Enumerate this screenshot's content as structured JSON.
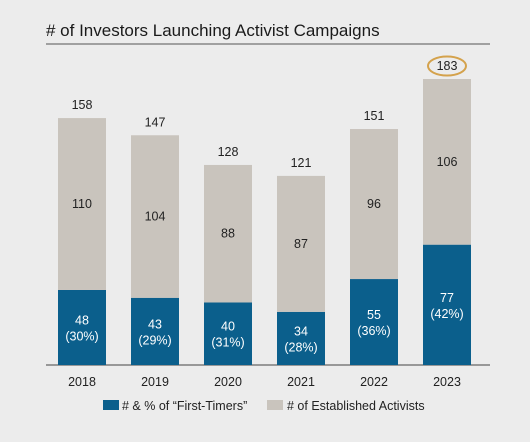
{
  "chart_data": {
    "type": "bar",
    "stacked": true,
    "title": "# of Investors Launching Activist Campaigns",
    "xlabel": "",
    "ylabel": "",
    "ylim": [
      0,
      183
    ],
    "grid": false,
    "legend_position": "bottom",
    "categories": [
      "2018",
      "2019",
      "2020",
      "2021",
      "2022",
      "2023"
    ],
    "totals": [
      "158",
      "147",
      "128",
      "121",
      "151",
      "183"
    ],
    "highlighted_total_index": 5,
    "series": [
      {
        "name": "# & % of “First-Timers”",
        "color": "#0b5f8c",
        "values": [
          48,
          43,
          40,
          34,
          55,
          77
        ],
        "percent_labels": [
          "(30%)",
          "(29%)",
          "(31%)",
          "(28%)",
          "(36%)",
          "(42%)"
        ]
      },
      {
        "name": "# of Established Activists",
        "color": "#c9c4bd",
        "values": [
          110,
          104,
          88,
          87,
          96,
          106
        ]
      }
    ],
    "highlight_color": "#d4a24c"
  }
}
